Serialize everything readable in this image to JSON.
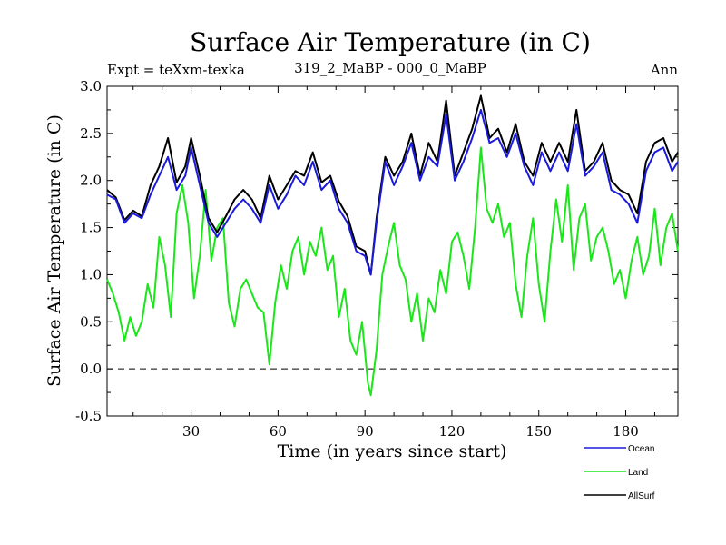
{
  "chart_data": {
    "type": "line",
    "title": "Surface Air Temperature (in C)",
    "subtitle_left": "Expt = teXxm-texka",
    "subtitle_center": "319_2_MaBP - 000_0_MaBP",
    "subtitle_right": "Ann",
    "xlabel": "Time (in years since start)",
    "ylabel": "Surface Air Temperature (in C)",
    "xlim": [
      1,
      198
    ],
    "ylim": [
      -0.5,
      3.0
    ],
    "x_ticks": [
      30,
      60,
      90,
      120,
      150,
      180
    ],
    "x_tick_labels": [
      "30",
      "60",
      "90",
      "120",
      "150",
      "180"
    ],
    "y_ticks": [
      -0.5,
      0.0,
      0.5,
      1.0,
      1.5,
      2.0,
      2.5,
      3.0
    ],
    "y_tick_labels": [
      "-0.5",
      "0.0",
      "0.5",
      "1.0",
      "1.5",
      "2.0",
      "2.5",
      "3.0"
    ],
    "zero_line": 0.0,
    "series": [
      {
        "name": "Ocean",
        "color": "#1a1adc",
        "x": [
          1,
          4,
          7,
          10,
          13,
          16,
          19,
          22,
          25,
          28,
          30,
          33,
          36,
          39,
          42,
          45,
          48,
          51,
          54,
          57,
          60,
          63,
          66,
          69,
          72,
          75,
          78,
          81,
          84,
          87,
          90,
          92,
          94,
          97,
          100,
          103,
          106,
          109,
          112,
          115,
          118,
          121,
          124,
          127,
          130,
          133,
          136,
          139,
          142,
          145,
          148,
          151,
          154,
          157,
          160,
          163,
          166,
          169,
          172,
          175,
          178,
          181,
          184,
          187,
          190,
          193,
          196,
          198
        ],
        "values": [
          1.85,
          1.8,
          1.55,
          1.65,
          1.6,
          1.85,
          2.05,
          2.25,
          1.9,
          2.05,
          2.35,
          1.95,
          1.55,
          1.4,
          1.55,
          1.7,
          1.8,
          1.7,
          1.55,
          1.95,
          1.7,
          1.85,
          2.05,
          1.95,
          2.2,
          1.9,
          2.0,
          1.7,
          1.55,
          1.25,
          1.2,
          1.0,
          1.55,
          2.2,
          1.95,
          2.15,
          2.4,
          2.0,
          2.25,
          2.15,
          2.7,
          2.0,
          2.2,
          2.45,
          2.75,
          2.4,
          2.45,
          2.25,
          2.5,
          2.15,
          1.95,
          2.3,
          2.1,
          2.3,
          2.1,
          2.6,
          2.05,
          2.15,
          2.3,
          1.9,
          1.85,
          1.75,
          1.55,
          2.1,
          2.3,
          2.35,
          2.1,
          2.2
        ]
      },
      {
        "name": "Land",
        "color": "#1ae61a",
        "x": [
          1,
          3,
          5,
          7,
          9,
          11,
          13,
          15,
          17,
          19,
          21,
          23,
          25,
          27,
          29,
          31,
          33,
          35,
          37,
          39,
          41,
          43,
          45,
          47,
          49,
          51,
          53,
          55,
          57,
          59,
          61,
          63,
          65,
          67,
          69,
          71,
          73,
          75,
          77,
          79,
          81,
          83,
          85,
          87,
          89,
          91,
          92,
          94,
          96,
          98,
          100,
          102,
          104,
          106,
          108,
          110,
          112,
          114,
          116,
          118,
          120,
          122,
          124,
          126,
          128,
          130,
          132,
          134,
          136,
          138,
          140,
          142,
          144,
          146,
          148,
          150,
          152,
          154,
          156,
          158,
          160,
          162,
          164,
          166,
          168,
          170,
          172,
          174,
          176,
          178,
          180,
          182,
          184,
          186,
          188,
          190,
          192,
          194,
          196,
          198
        ],
        "values": [
          0.95,
          0.8,
          0.6,
          0.3,
          0.55,
          0.35,
          0.5,
          0.9,
          0.65,
          1.4,
          1.1,
          0.55,
          1.65,
          1.95,
          1.55,
          0.75,
          1.2,
          1.9,
          1.15,
          1.5,
          1.6,
          0.7,
          0.45,
          0.85,
          0.95,
          0.8,
          0.65,
          0.6,
          0.05,
          0.7,
          1.1,
          0.85,
          1.25,
          1.4,
          1.0,
          1.35,
          1.2,
          1.5,
          1.05,
          1.2,
          0.55,
          0.85,
          0.3,
          0.15,
          0.5,
          -0.15,
          -0.28,
          0.2,
          1.0,
          1.3,
          1.55,
          1.1,
          0.95,
          0.5,
          0.8,
          0.3,
          0.75,
          0.6,
          1.05,
          0.8,
          1.35,
          1.45,
          1.2,
          0.85,
          1.5,
          2.35,
          1.7,
          1.55,
          1.75,
          1.4,
          1.55,
          0.9,
          0.55,
          1.2,
          1.6,
          0.9,
          0.5,
          1.25,
          1.8,
          1.35,
          1.95,
          1.05,
          1.6,
          1.75,
          1.15,
          1.4,
          1.5,
          1.25,
          0.9,
          1.05,
          0.75,
          1.15,
          1.4,
          1.0,
          1.2,
          1.7,
          1.1,
          1.5,
          1.65,
          1.25
        ]
      },
      {
        "name": "AllSurf",
        "color": "#000000",
        "x": [
          1,
          4,
          7,
          10,
          13,
          16,
          19,
          22,
          25,
          28,
          30,
          33,
          36,
          39,
          42,
          45,
          48,
          51,
          54,
          57,
          60,
          63,
          66,
          69,
          72,
          75,
          78,
          81,
          84,
          87,
          90,
          92,
          94,
          97,
          100,
          103,
          106,
          109,
          112,
          115,
          118,
          121,
          124,
          127,
          130,
          133,
          136,
          139,
          142,
          145,
          148,
          151,
          154,
          157,
          160,
          163,
          166,
          169,
          172,
          175,
          178,
          181,
          184,
          187,
          190,
          193,
          196,
          198
        ],
        "values": [
          1.9,
          1.82,
          1.58,
          1.68,
          1.62,
          1.95,
          2.15,
          2.45,
          1.98,
          2.15,
          2.45,
          2.05,
          1.6,
          1.45,
          1.62,
          1.8,
          1.9,
          1.8,
          1.6,
          2.05,
          1.8,
          1.95,
          2.1,
          2.05,
          2.3,
          1.98,
          2.05,
          1.78,
          1.62,
          1.3,
          1.25,
          1.0,
          1.6,
          2.25,
          2.05,
          2.2,
          2.5,
          2.05,
          2.4,
          2.2,
          2.85,
          2.05,
          2.3,
          2.55,
          2.9,
          2.45,
          2.55,
          2.3,
          2.6,
          2.2,
          2.05,
          2.4,
          2.2,
          2.4,
          2.2,
          2.75,
          2.1,
          2.2,
          2.4,
          2.0,
          1.9,
          1.85,
          1.65,
          2.2,
          2.4,
          2.45,
          2.2,
          2.3
        ]
      }
    ],
    "legend": {
      "placement": "bottom-right",
      "items": [
        "Ocean",
        "Land",
        "AllSurf"
      ]
    }
  }
}
